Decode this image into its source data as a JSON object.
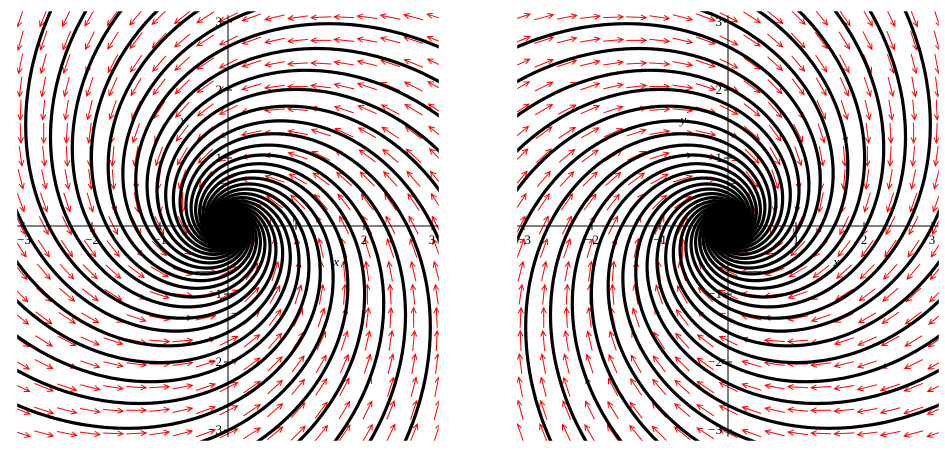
{
  "chart_data": [
    {
      "type": "phase_portrait",
      "description_visible": "direction field with solution curves, spiral into origin, counter-clockwise",
      "x_label": "x",
      "y_label": "y",
      "xlim": [
        -3.1,
        3.1
      ],
      "ylim": [
        -3.1,
        3.1
      ],
      "x_ticks": [
        -3,
        -2,
        -1,
        1,
        2,
        3
      ],
      "y_ticks": [
        -3,
        -2,
        -1,
        1,
        2,
        3
      ],
      "x_tick_labels": [
        "−3",
        "−2",
        "−1",
        "1",
        "2",
        "3"
      ],
      "y_tick_labels": [
        "−3",
        "−2",
        "−1",
        "1",
        "2",
        "3"
      ],
      "field_grid_spacing": 0.34,
      "system": {
        "a": -0.5,
        "b": -1,
        "c": 1,
        "d": -0.5
      },
      "rotation": "ccw",
      "trajectory_count": 24,
      "arrow_color": "#ff0000",
      "curve_color": "#000000"
    },
    {
      "type": "phase_portrait",
      "description_visible": "direction field with solution curves, spiral into origin, clockwise",
      "x_label": "x",
      "y_label": "y",
      "xlim": [
        -3.1,
        3.1
      ],
      "ylim": [
        -3.1,
        3.1
      ],
      "x_ticks": [
        -3,
        -2,
        -1,
        1,
        2,
        3
      ],
      "y_ticks": [
        -3,
        -2,
        -1,
        1,
        2,
        3
      ],
      "x_tick_labels": [
        "−3",
        "−2",
        "−1",
        "1",
        "2",
        "3"
      ],
      "y_tick_labels": [
        "−3",
        "−2",
        "−1",
        "1",
        "2",
        "3"
      ],
      "field_grid_spacing": 0.34,
      "system": {
        "a": -0.5,
        "b": 1,
        "c": -1,
        "d": -0.5
      },
      "rotation": "cw",
      "trajectory_count": 24,
      "arrow_color": "#ff0000",
      "curve_color": "#000000"
    }
  ]
}
